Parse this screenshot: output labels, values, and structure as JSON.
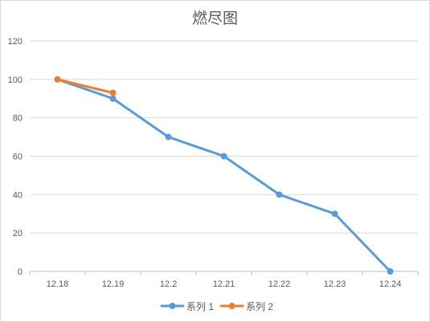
{
  "chart_data": {
    "type": "line",
    "title": "燃尽图",
    "categories": [
      "12.18",
      "12.19",
      "12.2",
      "12.21",
      "12.22",
      "12.23",
      "12.24"
    ],
    "series": [
      {
        "name": "系列 1",
        "color": "#5b9bd5",
        "values": [
          100,
          90,
          70,
          60,
          40,
          30,
          0
        ]
      },
      {
        "name": "系列 2",
        "color": "#ed7d31",
        "values": [
          100,
          93,
          null,
          null,
          null,
          null,
          null
        ]
      }
    ],
    "ylim": [
      0,
      120
    ],
    "yticks": [
      0,
      20,
      40,
      60,
      80,
      100,
      120
    ],
    "grid": true,
    "legend": "bottom"
  }
}
